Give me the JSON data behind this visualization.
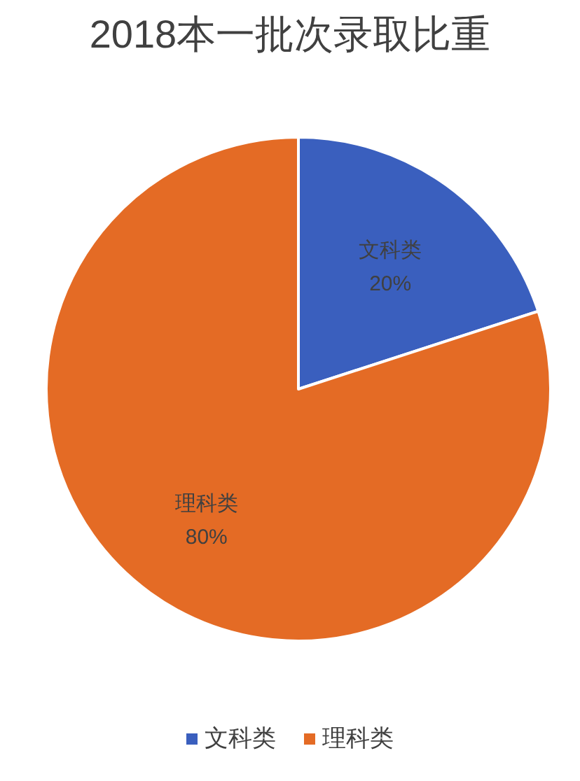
{
  "chart_data": {
    "type": "pie",
    "title": "2018本一批次录取比重",
    "categories": [
      "文科类",
      "理科类"
    ],
    "values": [
      20,
      80
    ],
    "value_labels": [
      "20%",
      "80%"
    ],
    "colors": [
      "#3a5fbe",
      "#e46b25"
    ],
    "legend": "bottom"
  }
}
